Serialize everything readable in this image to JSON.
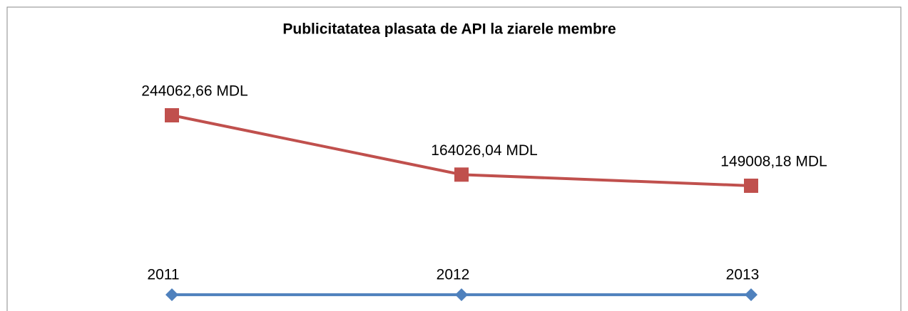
{
  "chart_data": {
    "type": "line",
    "title": "Publicitatatea plasata de API la ziarele membre",
    "categories": [
      null,
      null,
      null
    ],
    "series": [
      {
        "color": "#c0504d",
        "values": [
          244062.66,
          164026.04,
          149008.18
        ],
        "value_labels": [
          "244062,66 MDL",
          "164026,04 MDL",
          "149008,18 MDL"
        ]
      },
      {
        "color": "#4f81bd",
        "values": [
          2011,
          2012,
          2013
        ]
      }
    ],
    "ylim": [
      -20000,
      390000
    ]
  }
}
